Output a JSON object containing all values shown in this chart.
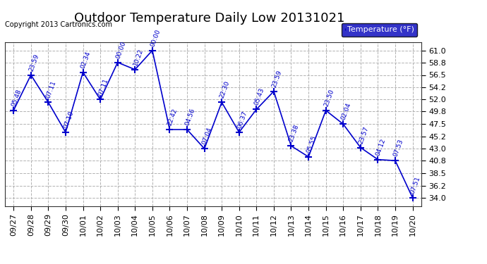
{
  "title": "Outdoor Temperature Daily Low 20131021",
  "copyright_text": "Copyright 2013 Cartronics.com",
  "legend_label": "Temperature (°F)",
  "line_color": "#0000cc",
  "bg_color": "#ffffff",
  "legend_bg": "#0000bb",
  "legend_text_color": "#ffffff",
  "x_labels": [
    "09/27",
    "09/28",
    "09/29",
    "09/30",
    "10/01",
    "10/02",
    "10/03",
    "10/04",
    "10/05",
    "10/06",
    "10/07",
    "10/08",
    "10/09",
    "10/10",
    "10/11",
    "10/12",
    "10/13",
    "10/14",
    "10/15",
    "10/16",
    "10/17",
    "10/18",
    "10/19",
    "10/20"
  ],
  "data_x": [
    0,
    1,
    2,
    3,
    4,
    5,
    6,
    7,
    8,
    9,
    10,
    11,
    12,
    13,
    14,
    15,
    16,
    17,
    18,
    19,
    20,
    21,
    22,
    23
  ],
  "data_y": [
    50.0,
    56.5,
    51.5,
    46.0,
    57.0,
    52.0,
    58.8,
    57.5,
    61.0,
    46.5,
    46.5,
    43.0,
    51.5,
    46.0,
    50.2,
    53.5,
    43.5,
    41.5,
    50.0,
    47.5,
    43.2,
    41.0,
    40.8,
    34.0
  ],
  "data_labels": [
    "05:48",
    "23:59",
    "07:11",
    "07:10",
    "02:34",
    "07:11",
    "00:00",
    "10:22",
    "00:00",
    "22:42",
    "04:56",
    "07:04",
    "22:30",
    "06:37",
    "05:43",
    "23:59",
    "23:38",
    "05:55",
    "23:50",
    "02:04",
    "23:57",
    "04:12",
    "07:53",
    "07:51"
  ],
  "ylim": [
    32.5,
    62.5
  ],
  "yticks": [
    34.0,
    36.2,
    38.5,
    40.8,
    43.0,
    45.2,
    47.5,
    49.8,
    52.0,
    54.2,
    56.5,
    58.8,
    61.0
  ],
  "grid_color": "#aaaaaa",
  "title_fontsize": 13,
  "annot_fontsize": 6.5,
  "tick_fontsize": 8,
  "copyright_fontsize": 7
}
